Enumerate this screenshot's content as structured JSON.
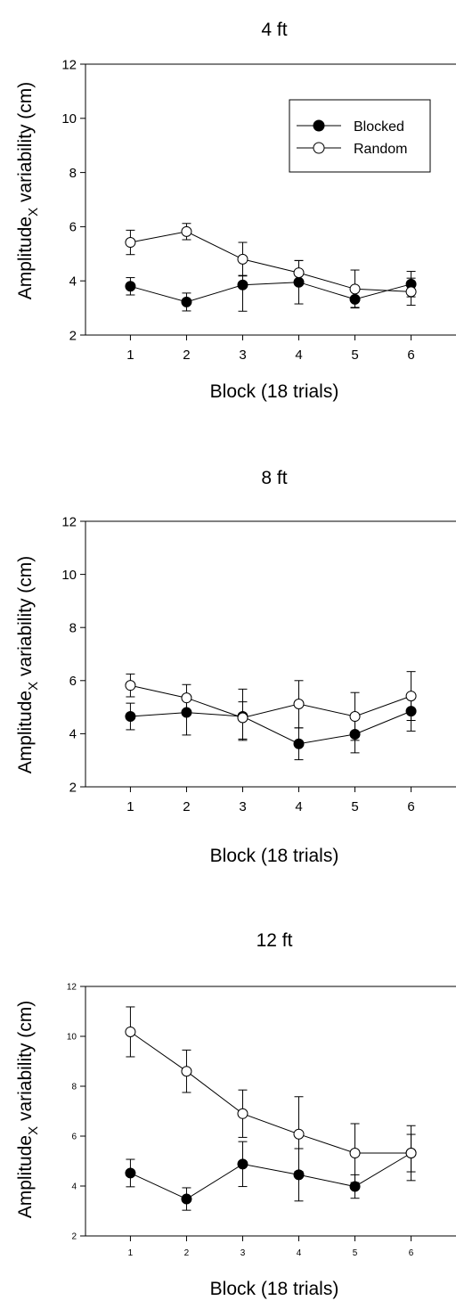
{
  "figure": {
    "panels": [
      {
        "title": "4 ft"
      },
      {
        "title": "8 ft"
      },
      {
        "title": "12 ft"
      }
    ]
  },
  "chart_data": [
    {
      "type": "line",
      "title": "4 ft",
      "xlabel": "Block (18 trials)",
      "ylabel_main": "Amplitude",
      "ylabel_sub": "X",
      "ylabel_rest": " variability (cm)",
      "categories": [
        "1",
        "2",
        "3",
        "4",
        "5",
        "6"
      ],
      "x": [
        1,
        2,
        3,
        4,
        5,
        6
      ],
      "xlim": [
        0.2,
        6.8
      ],
      "ylim": [
        2,
        12
      ],
      "yticks": [
        2,
        4,
        6,
        8,
        10,
        12
      ],
      "legend_position": "top-right",
      "series": [
        {
          "name": "Blocked",
          "marker": "filled-circle",
          "values": [
            3.8,
            3.22,
            3.85,
            3.95,
            3.32,
            3.88
          ],
          "error_upper": [
            0.32,
            0.33,
            0.35,
            0.8,
            0.3,
            0.47
          ],
          "error_lower": [
            0.32,
            0.33,
            0.97,
            0.8,
            0.3,
            0.47
          ]
        },
        {
          "name": "Random",
          "marker": "open-circle",
          "values": [
            5.42,
            5.82,
            4.8,
            4.3,
            3.7,
            3.6
          ],
          "error_upper": [
            0.45,
            0.3,
            0.62,
            0.45,
            0.7,
            0.5
          ],
          "error_lower": [
            0.45,
            0.3,
            0.62,
            0.45,
            0.7,
            0.5
          ]
        }
      ]
    },
    {
      "type": "line",
      "title": "8 ft",
      "xlabel": "Block (18 trials)",
      "ylabel_main": "Amplitude",
      "ylabel_sub": "X",
      "ylabel_rest": " variability (cm)",
      "categories": [
        "1",
        "2",
        "3",
        "4",
        "5",
        "6"
      ],
      "x": [
        1,
        2,
        3,
        4,
        5,
        6
      ],
      "xlim": [
        0.2,
        6.8
      ],
      "ylim": [
        2,
        12
      ],
      "yticks": [
        2,
        4,
        6,
        8,
        10,
        12
      ],
      "series": [
        {
          "name": "Blocked",
          "marker": "filled-circle",
          "values": [
            4.65,
            4.8,
            4.65,
            3.62,
            3.98,
            4.85
          ],
          "error_upper": [
            0.5,
            0.45,
            0.55,
            0.6,
            0.62,
            0.6
          ],
          "error_lower": [
            0.5,
            0.85,
            0.85,
            0.6,
            0.7,
            0.75
          ]
        },
        {
          "name": "Random",
          "marker": "open-circle",
          "values": [
            5.82,
            5.35,
            4.6,
            5.12,
            4.65,
            5.42
          ],
          "error_upper": [
            0.43,
            0.5,
            1.08,
            0.88,
            0.9,
            0.92
          ],
          "error_lower": [
            0.43,
            0.5,
            0.85,
            0.9,
            0.9,
            0.92
          ]
        }
      ]
    },
    {
      "type": "line",
      "title": "12 ft",
      "xlabel": "Block (18 trials)",
      "ylabel_main": "Amplitude",
      "ylabel_sub": "X",
      "ylabel_rest": " variability (cm)",
      "categories": [
        "1",
        "2",
        "3",
        "4",
        "5",
        "6"
      ],
      "x": [
        1,
        2,
        3,
        4,
        5,
        6
      ],
      "xlim": [
        0.2,
        6.8
      ],
      "ylim": [
        2,
        12
      ],
      "yticks": [
        2,
        4,
        6,
        8,
        10,
        12
      ],
      "series": [
        {
          "name": "Blocked",
          "marker": "filled-circle",
          "values": [
            4.52,
            3.48,
            4.88,
            4.45,
            3.98,
            5.32
          ],
          "error_upper": [
            0.55,
            0.45,
            0.9,
            1.05,
            0.47,
            0.75
          ],
          "error_lower": [
            0.55,
            0.45,
            0.9,
            1.05,
            0.47,
            0.75
          ]
        },
        {
          "name": "Random",
          "marker": "open-circle",
          "values": [
            10.18,
            8.6,
            6.9,
            6.08,
            5.32,
            5.32
          ],
          "error_upper": [
            1.0,
            0.85,
            0.95,
            1.5,
            1.18,
            1.1
          ],
          "error_lower": [
            1.0,
            0.85,
            0.95,
            1.5,
            1.18,
            1.1
          ]
        }
      ]
    }
  ]
}
